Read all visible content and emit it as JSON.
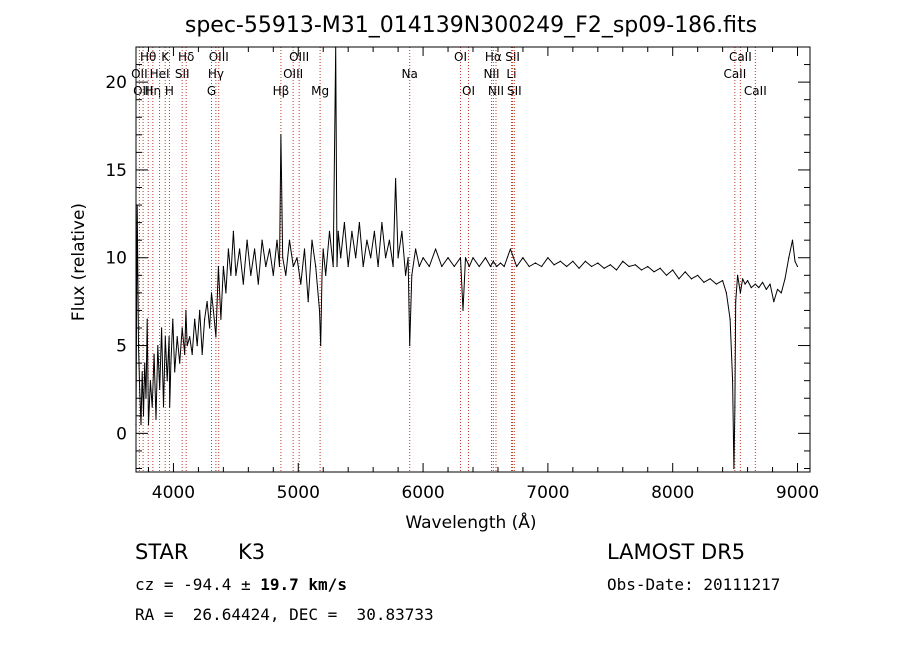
{
  "chart_data": {
    "type": "line",
    "title": "spec-55913-M31_014139N300249_F2_sp09-186.fits",
    "xlabel": "Wavelength (Å)",
    "ylabel": "Flux (relative)",
    "xlim": [
      3700,
      9100
    ],
    "ylim": [
      -2.2,
      22
    ],
    "xticks": [
      4000,
      5000,
      6000,
      7000,
      8000,
      9000
    ],
    "yticks": [
      0,
      5,
      10,
      15,
      20
    ],
    "grid": false,
    "series": [
      {
        "color": "#000000",
        "x": [
          3700,
          3710,
          3720,
          3730,
          3740,
          3750,
          3760,
          3770,
          3780,
          3790,
          3800,
          3815,
          3830,
          3845,
          3860,
          3875,
          3890,
          3905,
          3920,
          3935,
          3950,
          3965,
          3970,
          3980,
          3995,
          4010,
          4030,
          4050,
          4070,
          4090,
          4100,
          4110,
          4130,
          4150,
          4170,
          4190,
          4210,
          4230,
          4250,
          4270,
          4290,
          4305,
          4320,
          4340,
          4360,
          4380,
          4400,
          4420,
          4440,
          4460,
          4480,
          4500,
          4530,
          4560,
          4590,
          4620,
          4650,
          4680,
          4710,
          4740,
          4770,
          4800,
          4830,
          4850,
          4861,
          4875,
          4900,
          4930,
          4960,
          4990,
          5020,
          5050,
          5080,
          5110,
          5140,
          5170,
          5180,
          5190,
          5200,
          5220,
          5250,
          5280,
          5300,
          5310,
          5320,
          5340,
          5370,
          5400,
          5430,
          5460,
          5490,
          5520,
          5550,
          5580,
          5610,
          5640,
          5670,
          5700,
          5730,
          5760,
          5780,
          5800,
          5830,
          5860,
          5880,
          5893,
          5910,
          5940,
          5970,
          6000,
          6050,
          6100,
          6150,
          6200,
          6250,
          6300,
          6320,
          6340,
          6370,
          6400,
          6450,
          6500,
          6540,
          6563,
          6590,
          6620,
          6650,
          6700,
          6750,
          6800,
          6850,
          6900,
          6950,
          7000,
          7050,
          7100,
          7150,
          7200,
          7250,
          7300,
          7350,
          7400,
          7450,
          7500,
          7550,
          7600,
          7650,
          7700,
          7750,
          7800,
          7850,
          7900,
          7950,
          8000,
          8050,
          8100,
          8150,
          8200,
          8250,
          8300,
          8350,
          8400,
          8430,
          8460,
          8480,
          8490,
          8498,
          8505,
          8520,
          8542,
          8560,
          8580,
          8600,
          8630,
          8662,
          8690,
          8720,
          8750,
          8780,
          8810,
          8840,
          8870,
          8900,
          8930,
          8960,
          8980,
          9000
        ],
        "y": [
          0.5,
          13,
          5,
          2.5,
          0.5,
          3.5,
          1.0,
          4.0,
          2.0,
          6.5,
          0.5,
          3.0,
          1.5,
          4.5,
          0.8,
          5.0,
          2.5,
          6.0,
          1.5,
          5.5,
          3.0,
          5.5,
          1.5,
          4.0,
          6.5,
          3.5,
          5.5,
          4.0,
          6.0,
          4.5,
          7.0,
          5.0,
          5.5,
          4.5,
          6.5,
          5.0,
          7.0,
          4.5,
          6.5,
          7.5,
          6.0,
          8.0,
          7.0,
          5.5,
          9.5,
          6.5,
          9.5,
          8.0,
          10.5,
          9.0,
          11.5,
          9.0,
          10.5,
          8.5,
          11.0,
          9.0,
          10.5,
          8.5,
          11.0,
          9.5,
          10.5,
          9.0,
          11.0,
          9.5,
          17.0,
          10.0,
          9.0,
          11.0,
          9.5,
          10.0,
          8.5,
          10.5,
          7.5,
          11.0,
          9.5,
          7.0,
          5.0,
          9.0,
          10.5,
          9.0,
          11.5,
          9.5,
          22.0,
          9.5,
          11.5,
          10.0,
          12.0,
          9.5,
          11.5,
          10.0,
          12.0,
          9.5,
          11.0,
          10.0,
          11.5,
          9.5,
          12.0,
          10.0,
          11.0,
          9.5,
          14.5,
          10.0,
          11.5,
          9.0,
          10.0,
          5.0,
          9.0,
          10.5,
          9.5,
          10.0,
          9.5,
          10.5,
          9.5,
          10.0,
          9.5,
          10.0,
          7.0,
          10.0,
          9.5,
          10.0,
          9.5,
          10.0,
          9.5,
          9.8,
          9.5,
          9.7,
          9.5,
          10.5,
          9.5,
          10.0,
          9.5,
          9.7,
          9.5,
          10.0,
          9.6,
          9.8,
          9.5,
          9.8,
          9.4,
          9.8,
          9.5,
          9.7,
          9.4,
          9.6,
          9.3,
          9.8,
          9.5,
          9.6,
          9.3,
          9.5,
          9.2,
          9.4,
          9.0,
          9.3,
          8.8,
          9.2,
          8.8,
          9.0,
          8.6,
          8.8,
          8.5,
          8.7,
          8.0,
          6.5,
          3.0,
          -2.0,
          1.5,
          7.5,
          9.0,
          8.0,
          8.8,
          8.5,
          8.7,
          8.3,
          8.5,
          8.3,
          8.6,
          8.2,
          8.5,
          7.5,
          8.2,
          8.0,
          8.8,
          10.0,
          11.0,
          9.8,
          9.5
        ]
      }
    ],
    "line_ids": [
      {
        "label": "Hθ",
        "x": 3798,
        "row": 1
      },
      {
        "label": "OII",
        "x": 3727,
        "row": 2
      },
      {
        "label": "OIII",
        "x": 3757,
        "row": 3
      },
      {
        "label": "Hη",
        "x": 3835,
        "row": 3
      },
      {
        "label": "K",
        "x": 3934,
        "row": 1
      },
      {
        "label": "HeI",
        "x": 3889,
        "row": 2
      },
      {
        "label": "H",
        "x": 3968,
        "row": 3
      },
      {
        "label": "Hδ",
        "x": 4102,
        "row": 1
      },
      {
        "label": "SII",
        "x": 4070,
        "row": 2
      },
      {
        "label": "OIII",
        "x": 4363,
        "row": 1
      },
      {
        "label": "Hγ",
        "x": 4340,
        "row": 2
      },
      {
        "label": "G",
        "x": 4305,
        "row": 3
      },
      {
        "label": "Hβ",
        "x": 4861,
        "row": 3
      },
      {
        "label": "OIII",
        "x": 5007,
        "row": 1
      },
      {
        "label": "OIII",
        "x": 4959,
        "row": 2
      },
      {
        "label": "Mg",
        "x": 5175,
        "row": 3
      },
      {
        "label": "Na",
        "x": 5893,
        "row": 2
      },
      {
        "label": "OI",
        "x": 6300,
        "row": 1
      },
      {
        "label": "OI",
        "x": 6364,
        "row": 3
      },
      {
        "label": "Hα",
        "x": 6563,
        "row": 1
      },
      {
        "label": "SII",
        "x": 6717,
        "row": 1
      },
      {
        "label": "NII",
        "x": 6548,
        "row": 2
      },
      {
        "label": "Li",
        "x": 6708,
        "row": 2
      },
      {
        "label": "NII",
        "x": 6584,
        "row": 3
      },
      {
        "label": "SII",
        "x": 6731,
        "row": 3
      },
      {
        "label": "CaII",
        "x": 8542,
        "row": 1
      },
      {
        "label": "CaII",
        "x": 8498,
        "row": 2
      },
      {
        "label": "CaII",
        "x": 8662,
        "row": 3
      }
    ]
  },
  "info": {
    "class": "STAR",
    "subclass": "K3",
    "survey": "LAMOST DR5",
    "cz_prefix": "cz = ",
    "cz_value": "-94.4",
    "cz_pm": " ± ",
    "cz_err": "19.7",
    "cz_unit": " km/s",
    "obs_date": "Obs-Date: 20111217",
    "radec": "RA =  26.64424, DEC =  30.83733"
  }
}
